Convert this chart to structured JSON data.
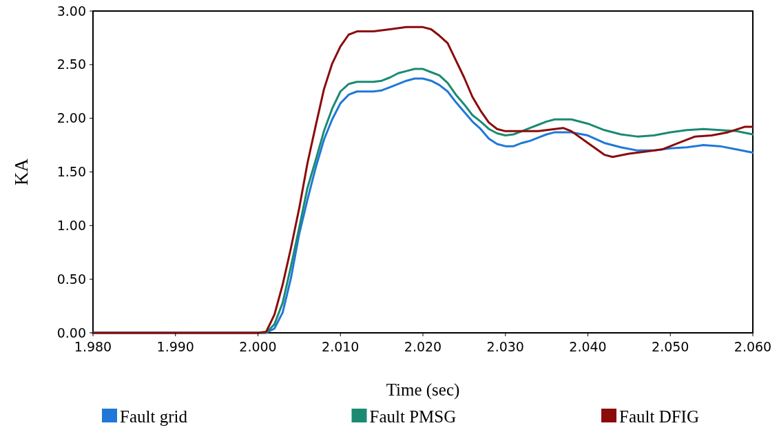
{
  "chart_data": {
    "type": "line",
    "xlabel": "Time (sec)",
    "ylabel": "KA",
    "xlim": [
      1.98,
      2.06
    ],
    "ylim": [
      0,
      3
    ],
    "xticks": [
      {
        "value": 1.98,
        "label": "1.980"
      },
      {
        "value": 1.99,
        "label": "1.990"
      },
      {
        "value": 2.0,
        "label": "2.000"
      },
      {
        "value": 2.01,
        "label": "2.010"
      },
      {
        "value": 2.02,
        "label": "2.020"
      },
      {
        "value": 2.03,
        "label": "2.030"
      },
      {
        "value": 2.04,
        "label": "2.040"
      },
      {
        "value": 2.05,
        "label": "2.050"
      },
      {
        "value": 2.06,
        "label": "2.060"
      }
    ],
    "yticks": [
      {
        "value": 0,
        "label": "0.00"
      },
      {
        "value": 0.5,
        "label": "0.50"
      },
      {
        "value": 1,
        "label": "1.00"
      },
      {
        "value": 1.5,
        "label": "1.50"
      },
      {
        "value": 2,
        "label": "2.00"
      },
      {
        "value": 2.5,
        "label": "2.50"
      },
      {
        "value": 3,
        "label": "3.00"
      }
    ],
    "legend": "bottom",
    "grid": false,
    "marker": "none",
    "line_style": "solid",
    "series": [
      {
        "name": "Fault grid",
        "color": "#1f78d8",
        "x": [
          1.98,
          2.0,
          2.001,
          2.002,
          2.003,
          2.004,
          2.005,
          2.006,
          2.007,
          2.008,
          2.009,
          2.01,
          2.011,
          2.012,
          2.014,
          2.015,
          2.016,
          2.017,
          2.018,
          2.019,
          2.02,
          2.021,
          2.022,
          2.023,
          2.024,
          2.025,
          2.026,
          2.027,
          2.028,
          2.029,
          2.03,
          2.031,
          2.032,
          2.033,
          2.034,
          2.035,
          2.036,
          2.038,
          2.04,
          2.042,
          2.044,
          2.046,
          2.048,
          2.05,
          2.052,
          2.054,
          2.056,
          2.058,
          2.06
        ],
        "values": [
          0,
          0,
          0,
          0.04,
          0.19,
          0.51,
          0.92,
          1.24,
          1.54,
          1.8,
          1.99,
          2.14,
          2.22,
          2.25,
          2.25,
          2.26,
          2.29,
          2.32,
          2.35,
          2.37,
          2.37,
          2.35,
          2.31,
          2.25,
          2.15,
          2.06,
          1.97,
          1.9,
          1.81,
          1.76,
          1.74,
          1.74,
          1.77,
          1.79,
          1.82,
          1.85,
          1.87,
          1.87,
          1.84,
          1.77,
          1.73,
          1.7,
          1.7,
          1.72,
          1.73,
          1.75,
          1.74,
          1.71,
          1.68
        ]
      },
      {
        "name": "Fault PMSG",
        "color": "#1a8a72",
        "x": [
          1.98,
          2.0,
          2.001,
          2.002,
          2.003,
          2.004,
          2.005,
          2.006,
          2.007,
          2.008,
          2.009,
          2.01,
          2.011,
          2.012,
          2.014,
          2.015,
          2.016,
          2.017,
          2.018,
          2.019,
          2.02,
          2.021,
          2.022,
          2.023,
          2.024,
          2.025,
          2.026,
          2.027,
          2.028,
          2.029,
          2.03,
          2.031,
          2.032,
          2.033,
          2.034,
          2.035,
          2.036,
          2.038,
          2.04,
          2.042,
          2.044,
          2.046,
          2.048,
          2.05,
          2.052,
          2.054,
          2.056,
          2.058,
          2.06
        ],
        "values": [
          0,
          0,
          0,
          0.08,
          0.28,
          0.62,
          0.98,
          1.35,
          1.61,
          1.88,
          2.09,
          2.25,
          2.32,
          2.34,
          2.34,
          2.35,
          2.38,
          2.42,
          2.44,
          2.46,
          2.46,
          2.43,
          2.4,
          2.33,
          2.22,
          2.13,
          2.03,
          1.97,
          1.9,
          1.86,
          1.84,
          1.85,
          1.88,
          1.91,
          1.94,
          1.97,
          1.99,
          1.99,
          1.95,
          1.89,
          1.85,
          1.83,
          1.84,
          1.87,
          1.89,
          1.9,
          1.89,
          1.88,
          1.85
        ]
      },
      {
        "name": "Fault DFIG",
        "color": "#8b0a0a",
        "x": [
          1.98,
          2.0,
          2.001,
          2.002,
          2.003,
          2.004,
          2.005,
          2.006,
          2.007,
          2.008,
          2.009,
          2.01,
          2.011,
          2.012,
          2.014,
          2.016,
          2.018,
          2.02,
          2.021,
          2.022,
          2.023,
          2.024,
          2.025,
          2.026,
          2.027,
          2.028,
          2.029,
          2.03,
          2.032,
          2.034,
          2.036,
          2.037,
          2.038,
          2.04,
          2.042,
          2.043,
          2.045,
          2.047,
          2.049,
          2.051,
          2.053,
          2.055,
          2.057,
          2.059,
          2.06
        ],
        "values": [
          0,
          0,
          0.01,
          0.17,
          0.45,
          0.79,
          1.16,
          1.58,
          1.93,
          2.27,
          2.51,
          2.67,
          2.78,
          2.81,
          2.81,
          2.83,
          2.85,
          2.85,
          2.83,
          2.77,
          2.7,
          2.54,
          2.38,
          2.2,
          2.07,
          1.96,
          1.9,
          1.88,
          1.88,
          1.88,
          1.9,
          1.91,
          1.88,
          1.77,
          1.66,
          1.64,
          1.67,
          1.69,
          1.71,
          1.77,
          1.83,
          1.84,
          1.87,
          1.92,
          1.92
        ]
      }
    ]
  }
}
